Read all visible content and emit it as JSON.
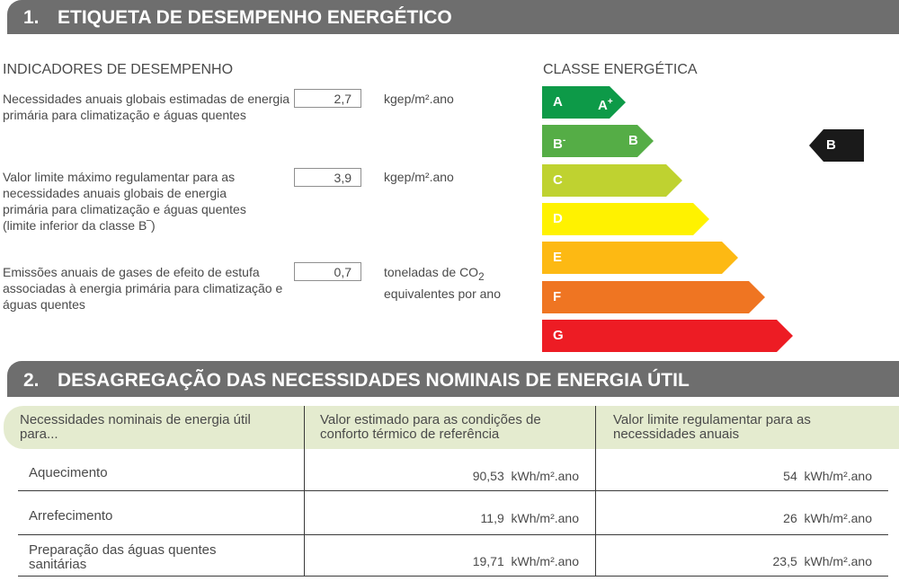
{
  "section1": {
    "number": "1.",
    "title": "ETIQUETA DE DESEMPENHO ENERGÉTICO"
  },
  "indicators": {
    "heading": "INDICADORES DE DESEMPENHO",
    "items": [
      {
        "label": "Necessidades anuais globais estimadas de energia primária para climatização e águas quentes",
        "value": "2,7",
        "unit": "kgep/m².ano"
      },
      {
        "label": "Valor limite máximo regulamentar para as necessidades anuais globais de energia primária para climatização e águas quentes (limite inferior da classe B‾)",
        "value": "3,9",
        "unit": "kgep/m².ano"
      },
      {
        "label": "Emissões anuais de gases de efeito de estufa associadas à energia primária para climatização e águas quentes",
        "value": "0,7",
        "unit_line1": "toneladas de CO",
        "unit_sub": "2",
        "unit_line2": "equivalentes por ano"
      }
    ]
  },
  "energy_class": {
    "heading": "CLASSE ENERGÉTICA",
    "bars": [
      {
        "left": "A",
        "right": "A",
        "right_sup": "+",
        "color": "#0d9a48"
      },
      {
        "left": "B",
        "left_sup": "-",
        "right": "B",
        "color": "#55ad46"
      },
      {
        "left": "C",
        "color": "#bfd230"
      },
      {
        "left": "D",
        "color": "#fff200"
      },
      {
        "left": "E",
        "color": "#fdb913"
      },
      {
        "left": "F",
        "color": "#ef7522"
      },
      {
        "left": "G",
        "color": "#ed1c24"
      }
    ],
    "current": {
      "label": "B",
      "color": "#1a1a1a"
    }
  },
  "section2": {
    "number": "2.",
    "title": "DESAGREGAÇÃO DAS NECESSIDADES NOMINAIS DE ENERGIA ÚTIL"
  },
  "table": {
    "headers": [
      "Necessidades nominais de energia útil para...",
      "Valor estimado para as condições de conforto térmico de referência",
      "Valor limite regulamentar para as necessidades anuais"
    ],
    "rows": [
      {
        "label": "Aquecimento",
        "estimated": "90,53",
        "estimated_unit": "kWh/m².ano",
        "limit": "54",
        "limit_unit": "kWh/m².ano"
      },
      {
        "label": "Arrefecimento",
        "estimated": "11,9",
        "estimated_unit": "kWh/m².ano",
        "limit": "26",
        "limit_unit": "kWh/m².ano"
      },
      {
        "label": "Preparação das águas quentes sanitárias",
        "estimated": "19,71",
        "estimated_unit": "kWh/m².ano",
        "limit": "23,5",
        "limit_unit": "kWh/m².ano"
      }
    ]
  }
}
